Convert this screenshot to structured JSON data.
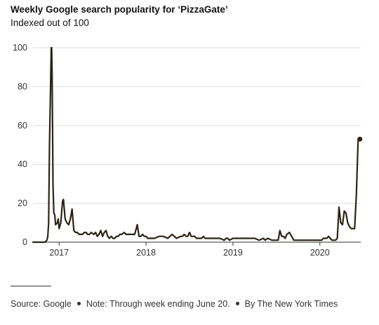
{
  "title": "Weekly Google search popularity for ‘PizzaGate’",
  "subtitle": "Indexed out of 100",
  "footer": {
    "source": "Source: Google",
    "note": "Note: Through week ending June 20.",
    "credit": "By The New York Times"
  },
  "colors": {
    "line": "#2b2317",
    "grid": "#dddddd",
    "axis": "#333333"
  },
  "chart_data": {
    "type": "line",
    "title": "Weekly Google search popularity for ‘PizzaGate’",
    "subtitle": "Indexed out of 100",
    "xlabel": "",
    "ylabel": "",
    "ylim": [
      0,
      100
    ],
    "yticks": [
      0,
      20,
      40,
      60,
      80,
      100
    ],
    "xlim": [
      2016.7,
      2020.47
    ],
    "xticks": [
      {
        "value": 2017,
        "label": "2017"
      },
      {
        "value": 2018,
        "label": "2018"
      },
      {
        "value": 2019,
        "label": "2019"
      },
      {
        "value": 2020,
        "label": "2020"
      }
    ],
    "grid": "horizontal",
    "end_marker": true,
    "series": [
      {
        "x": [
          2016.7,
          2016.84,
          2016.86,
          2016.87,
          2016.88,
          2016.89,
          2016.9,
          2016.91,
          2016.915,
          2016.92,
          2016.93,
          2016.94,
          2016.95,
          2016.96,
          2016.98,
          2016.99,
          2017.0,
          2017.02,
          2017.04,
          2017.05,
          2017.07,
          2017.09,
          2017.11,
          2017.13,
          2017.15,
          2017.17,
          2017.19,
          2017.21,
          2017.23,
          2017.25,
          2017.27,
          2017.29,
          2017.31,
          2017.33,
          2017.35,
          2017.37,
          2017.4,
          2017.42,
          2017.44,
          2017.46,
          2017.48,
          2017.5,
          2017.52,
          2017.54,
          2017.56,
          2017.58,
          2017.6,
          2017.62,
          2017.64,
          2017.66,
          2017.68,
          2017.7,
          2017.72,
          2017.75,
          2017.77,
          2017.79,
          2017.81,
          2017.83,
          2017.85,
          2017.87,
          2017.9,
          2017.92,
          2017.94,
          2017.96,
          2017.98,
          2018.0,
          2018.02,
          2018.04,
          2018.06,
          2018.08,
          2018.1,
          2018.15,
          2018.2,
          2018.25,
          2018.3,
          2018.35,
          2018.4,
          2018.42,
          2018.44,
          2018.46,
          2018.48,
          2018.5,
          2018.52,
          2018.54,
          2018.56,
          2018.58,
          2018.6,
          2018.62,
          2018.64,
          2018.66,
          2018.68,
          2018.7,
          2018.75,
          2018.8,
          2018.85,
          2018.9,
          2018.92,
          2018.94,
          2018.96,
          2019.0,
          2019.05,
          2019.1,
          2019.15,
          2019.2,
          2019.25,
          2019.3,
          2019.35,
          2019.37,
          2019.4,
          2019.45,
          2019.5,
          2019.52,
          2019.54,
          2019.56,
          2019.58,
          2019.6,
          2019.62,
          2019.65,
          2019.7,
          2019.75,
          2019.8,
          2019.85,
          2019.88,
          2019.92,
          2019.96,
          2020.0,
          2020.02,
          2020.04,
          2020.06,
          2020.08,
          2020.1,
          2020.12,
          2020.14,
          2020.16,
          2020.18,
          2020.2,
          2020.22,
          2020.24,
          2020.26,
          2020.28,
          2020.3,
          2020.32,
          2020.34,
          2020.36,
          2020.38,
          2020.4,
          2020.42,
          2020.44,
          2020.45,
          2020.46
        ],
        "values": [
          0,
          0,
          1,
          3,
          10,
          50,
          75,
          100,
          100,
          85,
          30,
          15,
          14,
          9,
          10,
          12,
          7,
          10,
          21,
          22,
          12,
          10,
          9,
          12,
          17,
          6,
          5,
          5,
          4,
          4,
          4,
          5,
          5,
          4,
          4,
          5,
          4,
          5,
          3,
          4,
          6,
          3,
          5,
          6,
          3,
          2,
          3,
          2,
          2,
          3,
          3,
          4,
          4,
          5,
          4,
          4,
          4,
          4,
          4,
          4,
          9,
          3,
          3,
          4,
          3,
          3,
          2,
          2,
          2,
          2,
          2,
          3,
          3,
          2,
          4,
          2,
          3,
          3,
          4,
          3,
          3,
          5,
          3,
          3,
          3,
          2,
          2,
          2,
          2,
          3,
          2,
          2,
          2,
          2,
          2,
          1,
          2,
          2,
          1,
          2,
          2,
          2,
          2,
          2,
          2,
          1,
          2,
          1,
          2,
          1,
          1,
          1,
          6,
          3,
          3,
          2,
          4,
          5,
          1,
          1,
          1,
          1,
          1,
          1,
          1,
          1,
          1,
          2,
          2,
          2,
          3,
          2,
          1,
          1,
          1,
          2,
          18,
          10,
          9,
          16,
          15,
          10,
          8,
          7,
          7,
          7,
          25,
          53,
          53,
          53
        ]
      }
    ]
  }
}
